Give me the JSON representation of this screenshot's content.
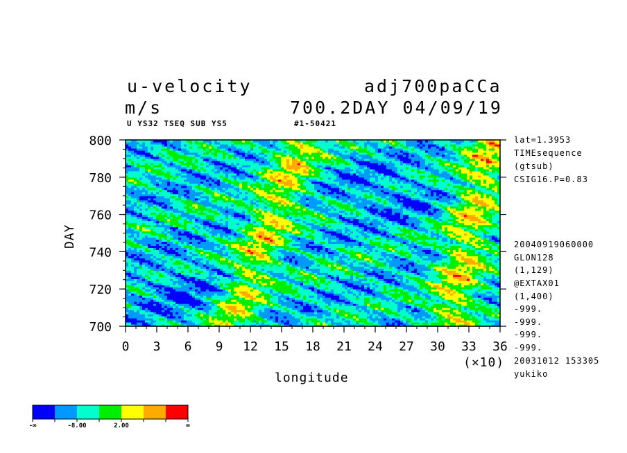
{
  "header": {
    "variable": "u-velocity",
    "experiment": "adj700paCCa",
    "unit": "m/s",
    "time_stamp": "700.2DAY 04/09/19",
    "subtitle_left": "U YS32 TSEQ SUB YS5",
    "subtitle_right": "#1-50421"
  },
  "side_info": {
    "top": [
      "lat=1.3953",
      "TIMEsequence",
      "(gtsub)",
      "CSIG16.P=0.83"
    ],
    "bottom": [
      "20040919060000",
      "GLON128",
      "(1,129)",
      "@EXTAX01",
      "(1,400)",
      "-999.",
      "-999.",
      "-999.",
      "-999.",
      "20031012 153305",
      "yukiko"
    ]
  },
  "colors": {
    "palette": [
      "#0000ff",
      "#0099ff",
      "#00ffcc",
      "#00ee00",
      "#ffff00",
      "#ffaa00",
      "#ff0000"
    ]
  },
  "chart_data": {
    "type": "heatmap",
    "title": "u-velocity",
    "xlabel": "longitude",
    "ylabel": "DAY",
    "x_multiplier_label": "(×10)",
    "xlim": [
      0,
      36
    ],
    "ylim": [
      700,
      800
    ],
    "x_ticks": [
      "0",
      "3",
      "6",
      "9",
      "12",
      "15",
      "18",
      "21",
      "24",
      "27",
      "30",
      "33",
      "36"
    ],
    "y_ticks": [
      "700",
      "720",
      "740",
      "760",
      "780",
      "800"
    ],
    "colorbar": {
      "levels_labels": [
        "-∞",
        "-8.00",
        "2.00",
        "∞"
      ],
      "colors": [
        "#0000ff",
        "#0099ff",
        "#00ffcc",
        "#00ee00",
        "#ffff00",
        "#ffaa00",
        "#ff0000"
      ]
    },
    "anomaly_bands": [
      {
        "desc": "positive (red/orange)",
        "x_at_day_700": 10,
        "x_at_day_800": 17
      },
      {
        "desc": "positive (red/orange)",
        "x_at_day_700": 31,
        "x_at_day_800": 35
      }
    ]
  }
}
